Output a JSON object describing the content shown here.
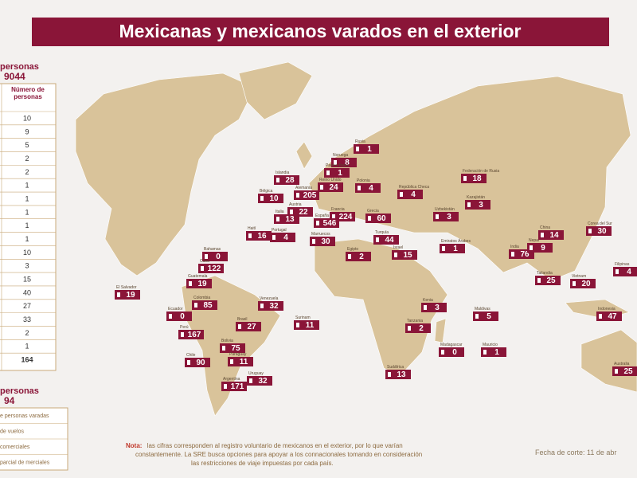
{
  "title": "Mexicanas y mexicanos varados en el exterior",
  "left_panel": {
    "total_label": "personas",
    "total": "9044",
    "column_header": "Número de personas",
    "values": [
      "10",
      "9",
      "5",
      "2",
      "2",
      "1",
      "1",
      "1",
      "1",
      "1",
      "10",
      "3",
      "15",
      "40",
      "27",
      "33",
      "2",
      "1",
      "164"
    ]
  },
  "legend_panel": {
    "total_label": "personas",
    "total": "94",
    "items": [
      "e personas varadas",
      "de vuelos",
      "comerciales",
      "parcial de merciales"
    ]
  },
  "map_labels": [
    {
      "name": "Rusia",
      "count": "1"
    },
    {
      "name": "Noruega",
      "count": "8"
    },
    {
      "name": "Islandia",
      "count": "28"
    },
    {
      "name": "Países Bajos",
      "count": "1"
    },
    {
      "name": "Reino Unido",
      "count": "24"
    },
    {
      "name": "Bélgica",
      "count": "10"
    },
    {
      "name": "Alemania",
      "count": "205"
    },
    {
      "name": "Polonia",
      "count": "4"
    },
    {
      "name": "República Checa",
      "count": "4"
    },
    {
      "name": "Austria",
      "count": "22"
    },
    {
      "name": "Italia",
      "count": "13"
    },
    {
      "name": "Francia",
      "count": "224"
    },
    {
      "name": "España",
      "count": "546"
    },
    {
      "name": "Portugal",
      "count": "4"
    },
    {
      "name": "Grecia",
      "count": "60"
    },
    {
      "name": "Marruecos",
      "count": "30"
    },
    {
      "name": "Turquía",
      "count": "44"
    },
    {
      "name": "Egipto",
      "count": "2"
    },
    {
      "name": "Israel",
      "count": "15"
    },
    {
      "name": "Federación de Rusia",
      "count": "18"
    },
    {
      "name": "Kazajistán",
      "count": "3"
    },
    {
      "name": "Uzbekistán",
      "count": "3"
    },
    {
      "name": "Emiratos Árabes",
      "count": "1"
    },
    {
      "name": "India",
      "count": "76"
    },
    {
      "name": "Nepal",
      "count": "9"
    },
    {
      "name": "China",
      "count": "14"
    },
    {
      "name": "Corea del Sur",
      "count": "30"
    },
    {
      "name": "Filipinas",
      "count": "4"
    },
    {
      "name": "Vietnam",
      "count": "20"
    },
    {
      "name": "Tailandia",
      "count": "25"
    },
    {
      "name": "Indonesia",
      "count": "47"
    },
    {
      "name": "Australia",
      "count": "25"
    },
    {
      "name": "Sudáfrica",
      "count": "13"
    },
    {
      "name": "Haití",
      "count": "16"
    },
    {
      "name": "Bahamas",
      "count": "0"
    },
    {
      "name": "Cuba",
      "count": "122"
    },
    {
      "name": "Guatemala",
      "count": "19"
    },
    {
      "name": "El Salvador",
      "count": "19"
    },
    {
      "name": "Colombia",
      "count": "85"
    },
    {
      "name": "Ecuador",
      "count": "0"
    },
    {
      "name": "Perú",
      "count": "167"
    },
    {
      "name": "Brasil",
      "count": "27"
    },
    {
      "name": "Bolivia",
      "count": "75"
    },
    {
      "name": "Chile",
      "count": "90"
    },
    {
      "name": "Paraguay",
      "count": "11"
    },
    {
      "name": "Argentina",
      "count": "171"
    },
    {
      "name": "Uruguay",
      "count": "32"
    },
    {
      "name": "Venezuela",
      "count": "32"
    },
    {
      "name": "Surinam",
      "count": "11"
    },
    {
      "name": "Kenia",
      "count": "3"
    },
    {
      "name": "Tanzania",
      "count": "2"
    },
    {
      "name": "Maldivas",
      "count": "5"
    },
    {
      "name": "Madagascar",
      "count": "0"
    },
    {
      "name": "Mauricio",
      "count": "1"
    }
  ],
  "note": {
    "label": "Nota:",
    "lines": [
      "las cifras corresponden al registro voluntario de mexicanos en el exterior, por lo que varían",
      "constantemente. La SRE busca opciones para apoyar a los connacionales tomando en consideración",
      "las restricciones de viaje impuestas por cada país."
    ]
  },
  "date": "Fecha de corte: 11 de abr"
}
